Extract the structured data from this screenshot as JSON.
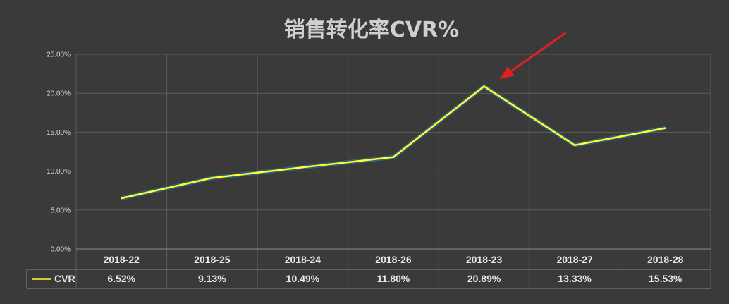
{
  "chart_data": {
    "type": "line",
    "title": "销售转化率CVR%",
    "categories": [
      "2018-22",
      "2018-25",
      "2018-24",
      "2018-26",
      "2018-23",
      "2018-27",
      "2018-28"
    ],
    "series": [
      {
        "name": "CVR",
        "values": [
          6.52,
          9.13,
          10.49,
          11.8,
          20.89,
          13.33,
          15.53
        ],
        "labels": [
          "6.52%",
          "9.13%",
          "10.49%",
          "11.80%",
          "20.89%",
          "13.33%",
          "15.53%"
        ],
        "color": "#ffff33"
      }
    ],
    "y_ticks": [
      "0.00%",
      "5.00%",
      "10.00%",
      "15.00%",
      "20.00%",
      "25.00%"
    ],
    "ylim": [
      0,
      25
    ],
    "grid": true,
    "data_table": true,
    "annotation": {
      "type": "arrow",
      "target_category": "2018-23",
      "color": "#e02020"
    },
    "colors": {
      "background": "#3a3a3a",
      "grid": "#5c5c5c",
      "line": "#ffff33",
      "line_glow": "#2f7fa6",
      "arrow": "#e02020"
    }
  }
}
